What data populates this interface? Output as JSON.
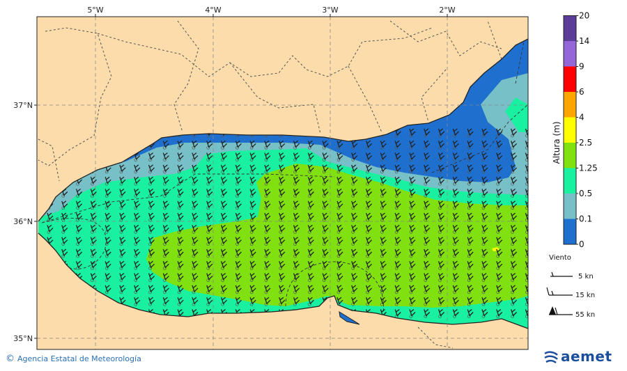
{
  "map": {
    "lon_ticks": [
      "5°W",
      "4°W",
      "3°W",
      "2°W"
    ],
    "lat_ticks": [
      "37°N",
      "36°N",
      "35°N"
    ]
  },
  "legend": {
    "title": "Altura (m)",
    "levels": [
      "0",
      "0.1",
      "0.5",
      "1.25",
      "2.5",
      "4",
      "6",
      "9",
      "14",
      "20"
    ],
    "colors": [
      "#1f6fcf",
      "#78c0c8",
      "#19f0a0",
      "#80e010",
      "#ffff00",
      "#ffa500",
      "#ff0000",
      "#9566d8",
      "#5b3d98"
    ]
  },
  "wind_legend": {
    "title": "Viento",
    "items": [
      "5 kn",
      "15 kn",
      "55 kn"
    ]
  },
  "footer": {
    "credit": "Agencia Estatal de Meteorología",
    "logo": "aemet"
  }
}
